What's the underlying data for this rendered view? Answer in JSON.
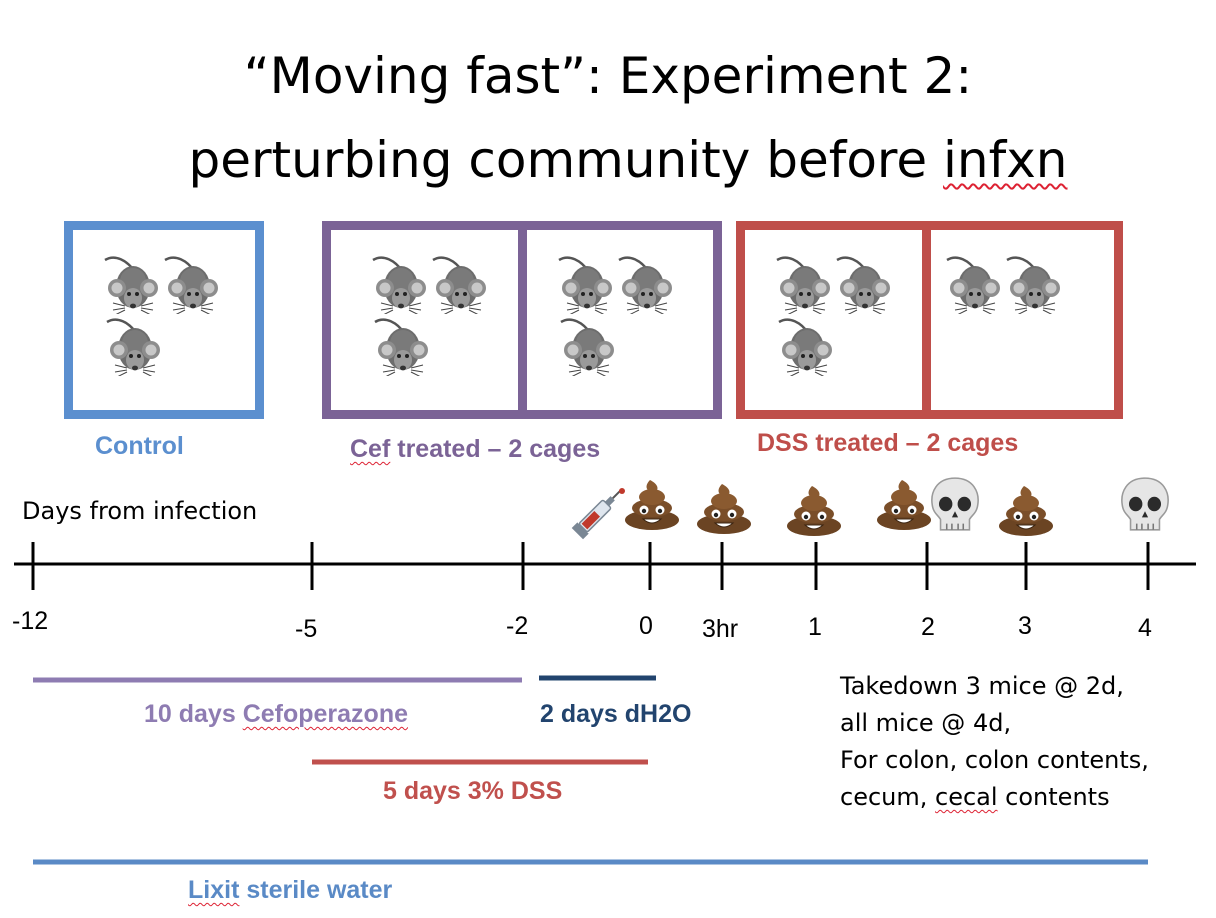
{
  "title": {
    "line1": "“Moving fast”: Experiment 2:",
    "line2_main": "perturbing community before ",
    "line2_tail": "infxn"
  },
  "groups": [
    {
      "label": "Control",
      "color": "#5b8fcf",
      "cages": [
        {
          "mice": 3
        }
      ]
    },
    {
      "label": "Cef treated – 2 cages",
      "color": "#7b6396",
      "cages": [
        {
          "mice": 3
        },
        {
          "mice": 3
        }
      ]
    },
    {
      "label": "DSS treated – 2 cages",
      "color": "#bf4e4a",
      "cages": [
        {
          "mice": 3
        },
        {
          "mice": 2
        }
      ]
    }
  ],
  "timeline": {
    "caption": "Days from infection",
    "ticks": [
      "-12",
      "-5",
      "-2",
      "0",
      "3hr",
      "1",
      "2",
      "3",
      "4"
    ]
  },
  "events": {
    "syringe": "syringe-icon",
    "poop": "poop-icon",
    "skull": "skull-icon"
  },
  "treatments": [
    {
      "label_main": "10 days ",
      "label_tail": "Cefoperazone",
      "color": "#8e7cb2"
    },
    {
      "label": "2 days dH2O",
      "color": "#22446e"
    },
    {
      "label": "5 days 3% DSS",
      "color": "#c0504d"
    },
    {
      "label_tail": "Lixit",
      "label_main": " sterile water",
      "color": "#5a8ac6"
    }
  ],
  "notes": {
    "line1": "Takedown 3 mice @ 2d,",
    "line2": "all mice @ 4d,",
    "line3": "For colon, colon contents,",
    "line4_pre": "cecum, ",
    "line4_sq": "cecal",
    "line4_post": " contents"
  }
}
